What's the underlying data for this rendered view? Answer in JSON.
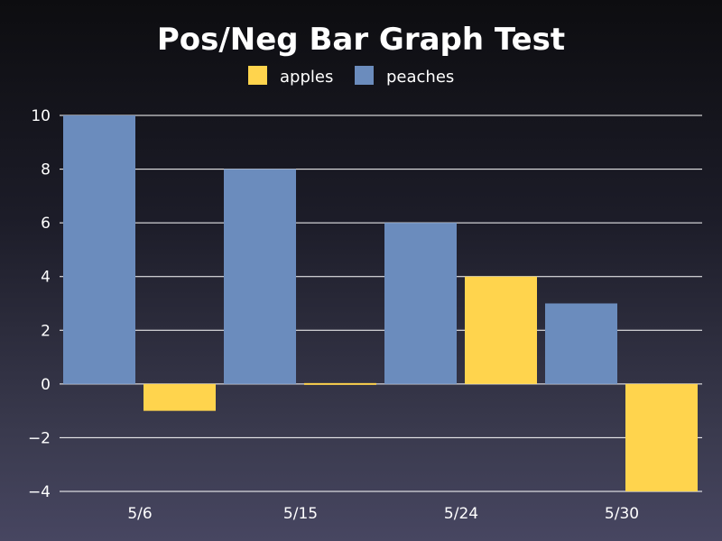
{
  "chart_data": {
    "type": "bar",
    "title": "Pos/Neg Bar Graph Test",
    "categories": [
      "5/6",
      "5/15",
      "5/24",
      "5/30"
    ],
    "series": [
      {
        "name": "peaches",
        "values": [
          10,
          8,
          6,
          3
        ],
        "color": "#6b8cbd"
      },
      {
        "name": "apples",
        "values": [
          -1,
          0,
          4,
          -4
        ],
        "color": "#ffd44d"
      }
    ],
    "legend_order": [
      "apples",
      "peaches"
    ],
    "legend_position": "top-center",
    "ylim": [
      -4,
      10
    ],
    "yticks": [
      10,
      8,
      6,
      4,
      2,
      0,
      -2,
      -4
    ],
    "ytick_labels": [
      "10",
      "8",
      "6",
      "4",
      "2",
      "0",
      "−2",
      "−4"
    ],
    "grid": true,
    "xlabel": "",
    "ylabel": ""
  }
}
